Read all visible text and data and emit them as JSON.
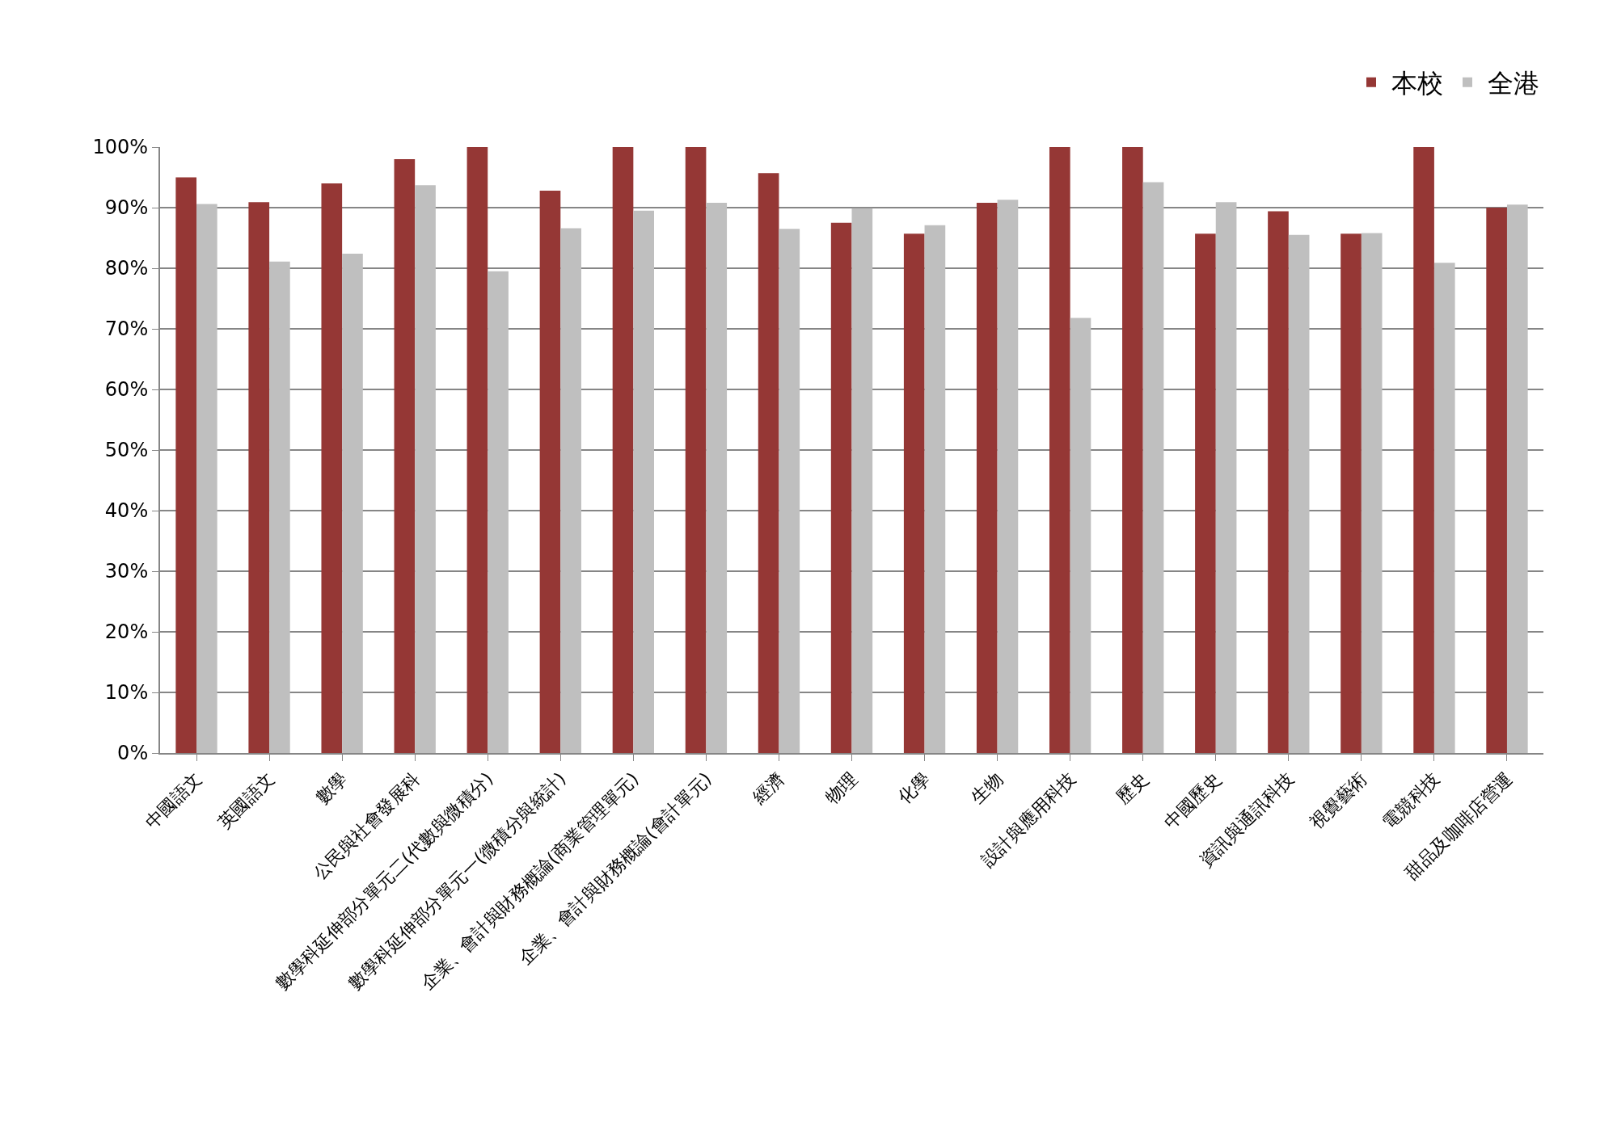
{
  "chart_data": {
    "type": "bar",
    "categories": [
      "中國語文",
      "英國語文",
      "數學",
      "公民與社會發展科",
      "數學科延伸部分單元二(代數與微積分)",
      "數學科延伸部分單元一(微積分與統計)",
      "企業、會計與財務概論(商業管理單元)",
      "企業、會計與財務概論(會計單元)",
      "經濟",
      "物理",
      "化學",
      "生物",
      "設計與應用科技",
      "歷史",
      "中國歷史",
      "資訊與通訊科技",
      "視覺藝術",
      "電競科技",
      "甜品及咖啡店營運"
    ],
    "series": [
      {
        "name": "本校",
        "color": "#953735",
        "values": [
          95.0,
          90.9,
          94.0,
          98.0,
          100,
          92.8,
          100,
          100,
          95.7,
          87.5,
          85.7,
          90.8,
          100,
          100,
          85.7,
          89.4,
          85.7,
          100,
          90.0
        ]
      },
      {
        "name": "全港",
        "color": "#bfbfbf",
        "values": [
          90.6,
          81.1,
          82.4,
          93.7,
          79.5,
          86.6,
          89.5,
          90.8,
          86.5,
          89.9,
          87.1,
          91.3,
          71.8,
          94.2,
          90.9,
          85.5,
          85.8,
          80.9,
          90.5
        ]
      }
    ],
    "ylim": [
      0,
      100
    ],
    "yticks": [
      {
        "value": 0,
        "label": "0%"
      },
      {
        "value": 10,
        "label": "10%"
      },
      {
        "value": 20,
        "label": "20%"
      },
      {
        "value": 30,
        "label": "30%"
      },
      {
        "value": 40,
        "label": "40%"
      },
      {
        "value": 50,
        "label": "50%"
      },
      {
        "value": 60,
        "label": "60%"
      },
      {
        "value": 70,
        "label": "70%"
      },
      {
        "value": 80,
        "label": "80%"
      },
      {
        "value": 90,
        "label": "90%"
      },
      {
        "value": 100,
        "label": "100%"
      }
    ],
    "grid": "y",
    "legend": "top right"
  }
}
